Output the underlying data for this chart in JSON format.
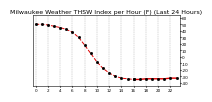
{
  "title": "Milwaukee Weather THSW Index per Hour (F) (Last 24 Hours)",
  "title_fontsize": 4.5,
  "title_color": "#000000",
  "bg_color": "#ffffff",
  "plot_bg_color": "#ffffff",
  "line_color": "#dd0000",
  "marker_color": "#000000",
  "grid_color": "#aaaaaa",
  "x_values": [
    0,
    1,
    2,
    3,
    4,
    5,
    6,
    7,
    8,
    9,
    10,
    11,
    12,
    13,
    14,
    15,
    16,
    17,
    18,
    19,
    20,
    21,
    22,
    23
  ],
  "y_values": [
    50,
    50,
    49,
    47,
    45,
    42,
    38,
    30,
    18,
    5,
    -8,
    -18,
    -25,
    -30,
    -33,
    -34,
    -35,
    -35,
    -34,
    -34,
    -34,
    -34,
    -33,
    -33
  ],
  "ylim": [
    -45,
    65
  ],
  "xlim": [
    -0.5,
    23.5
  ],
  "yticks": [
    -40,
    -30,
    -20,
    -10,
    0,
    10,
    20,
    30,
    40,
    50,
    60
  ],
  "ytick_labels": [
    "-40",
    "-30",
    "-20",
    "-10",
    "0",
    "10",
    "20",
    "30",
    "40",
    "50",
    "60"
  ],
  "xtick_positions": [
    0,
    2,
    4,
    6,
    8,
    10,
    12,
    14,
    16,
    18,
    20,
    22
  ],
  "xtick_labels": [
    "0",
    "2",
    "4",
    "6",
    "8",
    "10",
    "12",
    "14",
    "16",
    "18",
    "20",
    "22"
  ],
  "tick_fontsize": 3.0,
  "segment1_end": 16,
  "segment2_start": 16
}
